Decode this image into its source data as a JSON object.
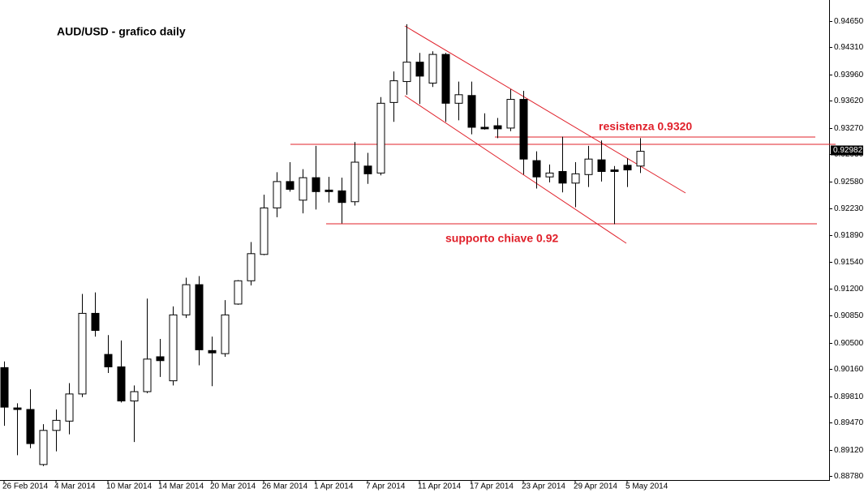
{
  "chart_data": {
    "type": "candlestick",
    "title": "AUD/USD - grafico daily",
    "annotations": [
      "resistenza 0.9320",
      "supporto chiave 0.92"
    ],
    "categories": [
      "26 Feb 2014",
      null,
      null,
      null,
      "4 Mar 2014",
      null,
      null,
      null,
      "10 Mar 2014",
      null,
      null,
      null,
      "14 Mar 2014",
      null,
      null,
      null,
      "20 Mar 2014",
      null,
      null,
      null,
      "26 Mar 2014",
      null,
      null,
      null,
      "1 Apr 2014",
      null,
      null,
      null,
      "7 Apr 2014",
      null,
      null,
      null,
      "11 Apr 2014",
      null,
      null,
      null,
      "17 Apr 2014",
      null,
      null,
      null,
      "23 Apr 2014",
      null,
      null,
      null,
      "29 Apr 2014",
      null,
      null,
      null,
      "5 May 2014",
      null
    ],
    "open": [
      0.9018,
      0.8966,
      0.8964,
      0.8893,
      0.8937,
      0.8949,
      0.8984,
      0.9088,
      0.9035,
      0.9019,
      0.8975,
      0.8987,
      0.9032,
      0.9001,
      0.9086,
      0.9125,
      0.904,
      0.9036,
      0.91,
      0.913,
      0.9164,
      0.9224,
      0.9258,
      0.9234,
      0.9263,
      0.9247,
      0.9246,
      0.9232,
      0.9278,
      0.9269,
      0.936,
      0.9387,
      0.9412,
      0.9385,
      0.9422,
      0.9359,
      0.9369,
      0.9328,
      0.933,
      0.9327,
      0.9364,
      0.9285,
      0.9264,
      0.9271,
      0.9256,
      0.9267,
      0.9286,
      0.9273,
      0.9279,
      0.9278
    ],
    "high": [
      0.9026,
      0.8972,
      0.899,
      0.8945,
      0.8964,
      0.8998,
      0.9113,
      0.9115,
      0.906,
      0.9053,
      0.8995,
      0.9107,
      0.9055,
      0.9097,
      0.9134,
      0.9136,
      0.9058,
      0.9105,
      0.9131,
      0.918,
      0.9241,
      0.927,
      0.9283,
      0.9274,
      0.9304,
      0.9264,
      0.9263,
      0.9309,
      0.9295,
      0.9367,
      0.94,
      0.9461,
      0.9424,
      0.9426,
      0.9424,
      0.9387,
      0.9387,
      0.9346,
      0.934,
      0.9377,
      0.9375,
      0.9297,
      0.928,
      0.9316,
      0.9283,
      0.9304,
      0.9311,
      0.9278,
      0.9288,
      0.9314
    ],
    "low": [
      0.8943,
      0.8905,
      0.8914,
      0.8891,
      0.891,
      0.8932,
      0.898,
      0.9058,
      0.9011,
      0.8973,
      0.8922,
      0.8985,
      0.9006,
      0.8995,
      0.9082,
      0.9021,
      0.8994,
      0.9032,
      0.9099,
      0.9124,
      0.9163,
      0.9212,
      0.9245,
      0.9217,
      0.9222,
      0.9231,
      0.9204,
      0.9227,
      0.9255,
      0.9266,
      0.9335,
      0.937,
      0.9358,
      0.938,
      0.9335,
      0.9337,
      0.9319,
      0.9325,
      0.9314,
      0.9323,
      0.9267,
      0.9249,
      0.9257,
      0.9244,
      0.9225,
      0.9251,
      0.9258,
      0.9203,
      0.9251,
      0.9269
    ],
    "close": [
      0.8967,
      0.8964,
      0.892,
      0.8937,
      0.895,
      0.8984,
      0.9088,
      0.9066,
      0.9019,
      0.8975,
      0.8987,
      0.9029,
      0.9027,
      0.9086,
      0.9125,
      0.9041,
      0.9037,
      0.9086,
      0.913,
      0.9165,
      0.9224,
      0.9258,
      0.9248,
      0.9263,
      0.9245,
      0.9245,
      0.9231,
      0.9283,
      0.9268,
      0.9359,
      0.9388,
      0.9412,
      0.9394,
      0.9422,
      0.9359,
      0.937,
      0.9328,
      0.9326,
      0.9326,
      0.9364,
      0.9287,
      0.9264,
      0.9269,
      0.9256,
      0.9268,
      0.9287,
      0.9271,
      0.9271,
      0.9273,
      0.9297
    ],
    "up_color": "#ffffff",
    "down_color": "#000000",
    "last_price": 0.92982,
    "ylim": [
      0.8873,
      0.9488
    ],
    "yticks": [
      {
        "value": 0.8878,
        "label": "0.88780"
      },
      {
        "value": 0.8912,
        "label": "0.89120"
      },
      {
        "value": 0.8947,
        "label": "0.89470"
      },
      {
        "value": 0.8981,
        "label": "0.89810"
      },
      {
        "value": 0.9016,
        "label": "0.90160"
      },
      {
        "value": 0.905,
        "label": "0.90500"
      },
      {
        "value": 0.9085,
        "label": "0.90850"
      },
      {
        "value": 0.912,
        "label": "0.91200"
      },
      {
        "value": 0.9154,
        "label": "0.91540"
      },
      {
        "value": 0.9189,
        "label": "0.91890"
      },
      {
        "value": 0.9223,
        "label": "0.92230"
      },
      {
        "value": 0.9258,
        "label": "0.92580"
      },
      {
        "value": 0.9293,
        "label": "0.92930"
      },
      {
        "value": 0.9327,
        "label": "0.93270"
      },
      {
        "value": 0.9362,
        "label": "0.93620"
      },
      {
        "value": 0.9396,
        "label": "0.93960"
      },
      {
        "value": 0.9431,
        "label": "0.94310"
      },
      {
        "value": 0.9465,
        "label": "0.94650"
      }
    ]
  }
}
